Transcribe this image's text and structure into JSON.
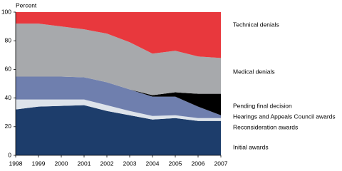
{
  "chart_data": {
    "type": "stacked-area",
    "y_label": "Percent",
    "x": [
      1998,
      1999,
      2000,
      2001,
      2002,
      2003,
      2004,
      2005,
      2006,
      2007
    ],
    "xlim": [
      1998,
      2007
    ],
    "xticks": [
      1998,
      1999,
      2000,
      2001,
      2002,
      2003,
      2004,
      2005,
      2006,
      2007
    ],
    "ylim": [
      0,
      100
    ],
    "yticks": [
      0,
      20,
      40,
      60,
      80,
      100
    ],
    "series": [
      {
        "name": "Initial awards",
        "color": "#1d3d6b",
        "values": [
          32,
          34,
          34.5,
          35,
          31,
          28,
          25,
          26,
          24,
          24
        ]
      },
      {
        "name": "Reconsideration awards",
        "color": "#dde3ea",
        "values": [
          7,
          5,
          4.5,
          4,
          4,
          3,
          2.5,
          2,
          2,
          2
        ]
      },
      {
        "name": "Hearings and Appeals Council awards",
        "color": "#6f7fae",
        "values": [
          16,
          16,
          16,
          15.5,
          16,
          15,
          13.5,
          13,
          8,
          2
        ]
      },
      {
        "name": "Pending final decision",
        "color": "#000000",
        "values": [
          0,
          0,
          0,
          0,
          0,
          0,
          1,
          3,
          9,
          15
        ]
      },
      {
        "name": "Medical denials",
        "color": "#a7a9ac",
        "values": [
          37,
          37,
          35,
          33.5,
          34,
          33,
          29,
          29,
          26,
          25
        ]
      },
      {
        "name": "Technical denials",
        "color": "#e8383d",
        "values": [
          8,
          8,
          10,
          12,
          15,
          21,
          29,
          27,
          31,
          32
        ]
      }
    ]
  }
}
